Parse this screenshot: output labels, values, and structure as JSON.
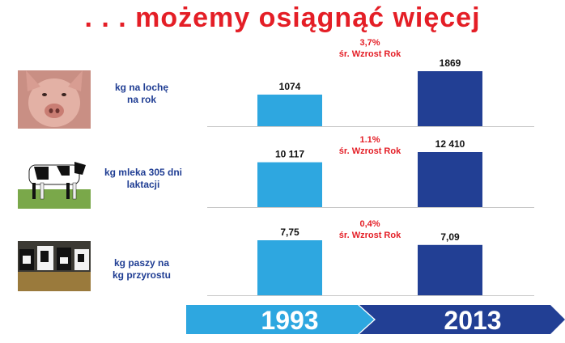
{
  "title": ". . . możemy osiągnąć więcej",
  "colors": {
    "title": "#e41e26",
    "label": "#1f3d93",
    "bar_1993": "#2ea7e0",
    "bar_2013": "#223f94",
    "growth": "#e41e26"
  },
  "rows": [
    {
      "label_line1": "kg na lochę",
      "label_line2": "na rok",
      "growth_pct": "3,7%",
      "growth_label": "śr. Wzrost Rok",
      "photo": "pig-photo"
    },
    {
      "label_line1": "kg mleka 305 dni",
      "label_line2": "laktacji",
      "growth_pct": "1.1%",
      "growth_label": "śr. Wzrost Rok",
      "photo": "cow-photo"
    },
    {
      "label_line1": "kg paszy na",
      "label_line2": "kg przyrostu",
      "growth_pct": "0,4%",
      "growth_label": "śr. Wzrost Rok",
      "photo": "cattle-feeding-photo"
    }
  ],
  "chart_data": [
    {
      "type": "bar",
      "categories": [
        "1993",
        "2013"
      ],
      "values": [
        1074,
        1869
      ],
      "data_labels": [
        "1074",
        "1869"
      ],
      "title": "kg na lochę na rok"
    },
    {
      "type": "bar",
      "categories": [
        "1993",
        "2013"
      ],
      "values": [
        10117,
        12410
      ],
      "data_labels": [
        "10 117",
        "12 410"
      ],
      "title": "kg mleka 305 dni laktacji"
    },
    {
      "type": "bar",
      "categories": [
        "1993",
        "2013"
      ],
      "values": [
        7.75,
        7.09
      ],
      "data_labels": [
        "7,75",
        "7,09"
      ],
      "title": "kg paszy na kg przyrostu"
    }
  ],
  "timeline": {
    "start": "1993",
    "end": "2013"
  }
}
